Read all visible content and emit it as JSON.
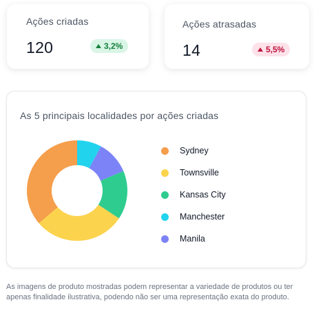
{
  "kpis": [
    {
      "title": "Ações criadas",
      "value": "120",
      "delta": "3,2%",
      "direction": "up",
      "tone": "positive"
    },
    {
      "title": "Ações atrasadas",
      "value": "14",
      "delta": "5,5%",
      "direction": "up",
      "tone": "negative"
    }
  ],
  "chart_card": {
    "title": "As 5 principais localidades por ações criadas"
  },
  "chart_data": {
    "type": "pie",
    "donut": true,
    "categories": [
      "Sydney",
      "Townsville",
      "Kansas City",
      "Manchester",
      "Manila"
    ],
    "values": [
      37,
      30,
      16,
      8,
      11
    ],
    "colors": [
      "#f59e4b",
      "#fcd34d",
      "#2ecc8f",
      "#22d3ee",
      "#7c83f7"
    ],
    "legend_position": "right"
  },
  "disclaimer": "As imagens de produto mostradas podem representar a variedade de produtos ou ter apenas finalidade ilustrativa, podendo não ser uma representação exata do produto."
}
